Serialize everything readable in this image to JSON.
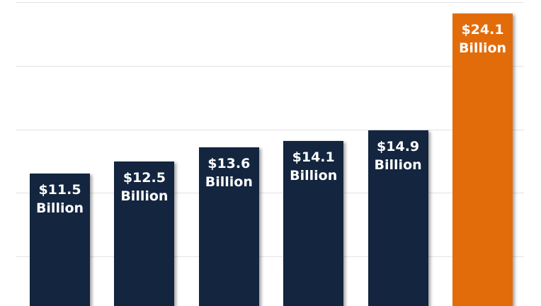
{
  "chart_data": {
    "type": "bar",
    "values": [
      11.5,
      12.5,
      13.6,
      14.1,
      14.9,
      24.1
    ],
    "value_labels": [
      "$11.5 Billion",
      "$12.5 Billion",
      "$13.6 Billion",
      "$14.1 Billion",
      "$14.9 Billion",
      "$24.1 Billion"
    ],
    "colors": [
      "#13253f",
      "#13253f",
      "#13253f",
      "#13253f",
      "#13253f",
      "#e36c0a"
    ],
    "ylim": [
      0,
      25
    ],
    "yticks": [
      5,
      10,
      15,
      20,
      25
    ],
    "grid": true
  }
}
